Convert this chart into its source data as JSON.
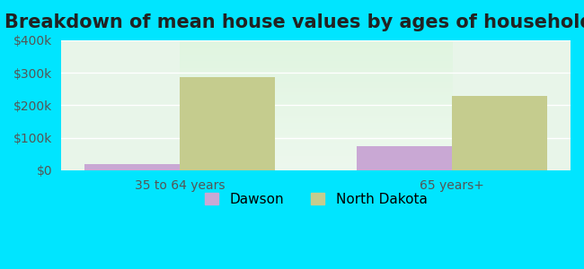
{
  "title": "Breakdown of mean house values by ages of householders",
  "categories": [
    "35 to 64 years",
    "65 years+"
  ],
  "dawson_values": [
    20000,
    75000
  ],
  "nd_values": [
    287000,
    230000
  ],
  "dawson_color": "#c9a8d4",
  "nd_color": "#c5cc8e",
  "background_top": "#e8f5e9",
  "background_bottom": "#c8f0c8",
  "outer_background": "#00e5ff",
  "ylim": [
    0,
    400000
  ],
  "yticks": [
    0,
    100000,
    200000,
    300000,
    400000
  ],
  "ytick_labels": [
    "$0",
    "$100k",
    "$200k",
    "$300k",
    "$400k"
  ],
  "bar_width": 0.35,
  "legend_labels": [
    "Dawson",
    "North Dakota"
  ],
  "title_fontsize": 15,
  "tick_fontsize": 10,
  "legend_fontsize": 11
}
